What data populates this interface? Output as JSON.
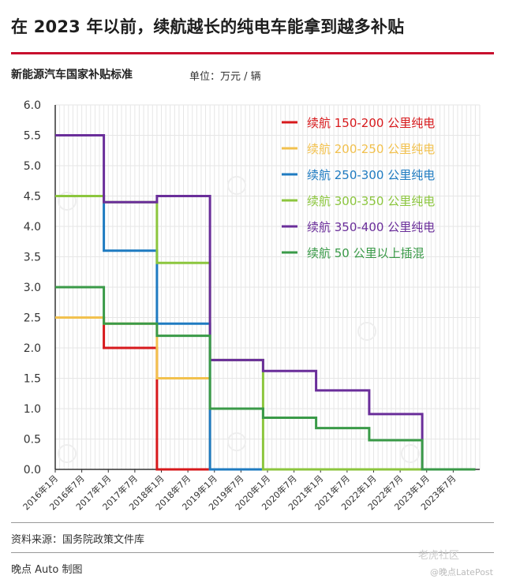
{
  "header": {
    "headline": "在 2023 年以前，续航越长的纯电车能拿到越多补贴",
    "subtitle": "新能源汽车国家补贴标准",
    "unit": "单位：万元 / 辆"
  },
  "footer": {
    "source": "资料来源：国务院政策文件库",
    "credit": "晚点 Auto 制图",
    "watermark_tiger": "老虎社区",
    "watermark_latepost": "@晚点LatePost"
  },
  "chart_data": {
    "type": "line",
    "step": true,
    "ylim": [
      0,
      6
    ],
    "yticks": [
      "0.0",
      "0.5",
      "1.0",
      "1.5",
      "2.0",
      "2.5",
      "3.0",
      "3.5",
      "4.0",
      "4.5",
      "5.0",
      "5.5",
      "6.0"
    ],
    "x_categories": [
      "2016年1月",
      "2016年7月",
      "2017年1月",
      "2017年7月",
      "2018年1月",
      "2018年7月",
      "2019年1月",
      "2019年7月",
      "2020年1月",
      "2020年7月",
      "2021年1月",
      "2021年7月",
      "2022年1月",
      "2022年7月",
      "2023年1月",
      "2023年7月"
    ],
    "grid": true,
    "legend_position": "top-right",
    "series": [
      {
        "name": "续航 150-200 公里纯电",
        "color": "#d7191c",
        "points": [
          [
            "2016-01",
            2.5
          ],
          [
            "2016-12",
            2.5
          ],
          [
            "2016-12",
            2.0
          ],
          [
            "2017-12",
            2.0
          ],
          [
            "2017-12",
            0.0
          ],
          [
            "2023-12",
            0.0
          ]
        ]
      },
      {
        "name": "续航 200-250 公里纯电",
        "color": "#f2c14e",
        "points": [
          [
            "2016-01",
            2.5
          ],
          [
            "2016-12",
            2.5
          ],
          [
            "2016-12",
            2.4
          ],
          [
            "2017-12",
            2.4
          ],
          [
            "2017-12",
            1.5
          ],
          [
            "2018-12",
            1.5
          ],
          [
            "2018-12",
            0.0
          ],
          [
            "2023-12",
            0.0
          ]
        ]
      },
      {
        "name": "续航 250-300 公里纯电",
        "color": "#1f7bc1",
        "points": [
          [
            "2016-01",
            4.5
          ],
          [
            "2016-12",
            4.5
          ],
          [
            "2016-12",
            3.6
          ],
          [
            "2017-12",
            3.6
          ],
          [
            "2017-12",
            2.4
          ],
          [
            "2018-12",
            2.4
          ],
          [
            "2018-12",
            0.0
          ],
          [
            "2023-12",
            0.0
          ]
        ]
      },
      {
        "name": "续航 300-350 公里纯电",
        "color": "#8cc63e",
        "points": [
          [
            "2016-01",
            4.5
          ],
          [
            "2016-12",
            4.5
          ],
          [
            "2016-12",
            4.4
          ],
          [
            "2017-12",
            4.4
          ],
          [
            "2017-12",
            3.4
          ],
          [
            "2018-12",
            3.4
          ],
          [
            "2018-12",
            1.8
          ],
          [
            "2019-12",
            1.8
          ],
          [
            "2019-12",
            0.0
          ],
          [
            "2023-12",
            0.0
          ]
        ]
      },
      {
        "name": "续航 350-400 公里纯电",
        "color": "#6a2e9a",
        "points": [
          [
            "2016-01",
            5.5
          ],
          [
            "2016-12",
            5.5
          ],
          [
            "2016-12",
            4.4
          ],
          [
            "2017-12",
            4.4
          ],
          [
            "2017-12",
            4.5
          ],
          [
            "2018-12",
            4.5
          ],
          [
            "2018-12",
            1.8
          ],
          [
            "2019-12",
            1.8
          ],
          [
            "2019-12",
            1.62
          ],
          [
            "2020-12",
            1.62
          ],
          [
            "2020-12",
            1.3
          ],
          [
            "2021-12",
            1.3
          ],
          [
            "2021-12",
            0.91
          ],
          [
            "2022-12",
            0.91
          ],
          [
            "2022-12",
            0.0
          ],
          [
            "2023-12",
            0.0
          ]
        ]
      },
      {
        "name": "续航  50  公里以上插混",
        "color": "#3a9a48",
        "points": [
          [
            "2016-01",
            3.0
          ],
          [
            "2016-12",
            3.0
          ],
          [
            "2016-12",
            2.4
          ],
          [
            "2017-12",
            2.4
          ],
          [
            "2017-12",
            2.2
          ],
          [
            "2018-12",
            2.2
          ],
          [
            "2018-12",
            1.0
          ],
          [
            "2019-12",
            1.0
          ],
          [
            "2019-12",
            0.85
          ],
          [
            "2020-12",
            0.85
          ],
          [
            "2020-12",
            0.68
          ],
          [
            "2021-12",
            0.68
          ],
          [
            "2021-12",
            0.48
          ],
          [
            "2022-12",
            0.48
          ],
          [
            "2022-12",
            0.0
          ],
          [
            "2023-12",
            0.0
          ]
        ]
      }
    ]
  }
}
